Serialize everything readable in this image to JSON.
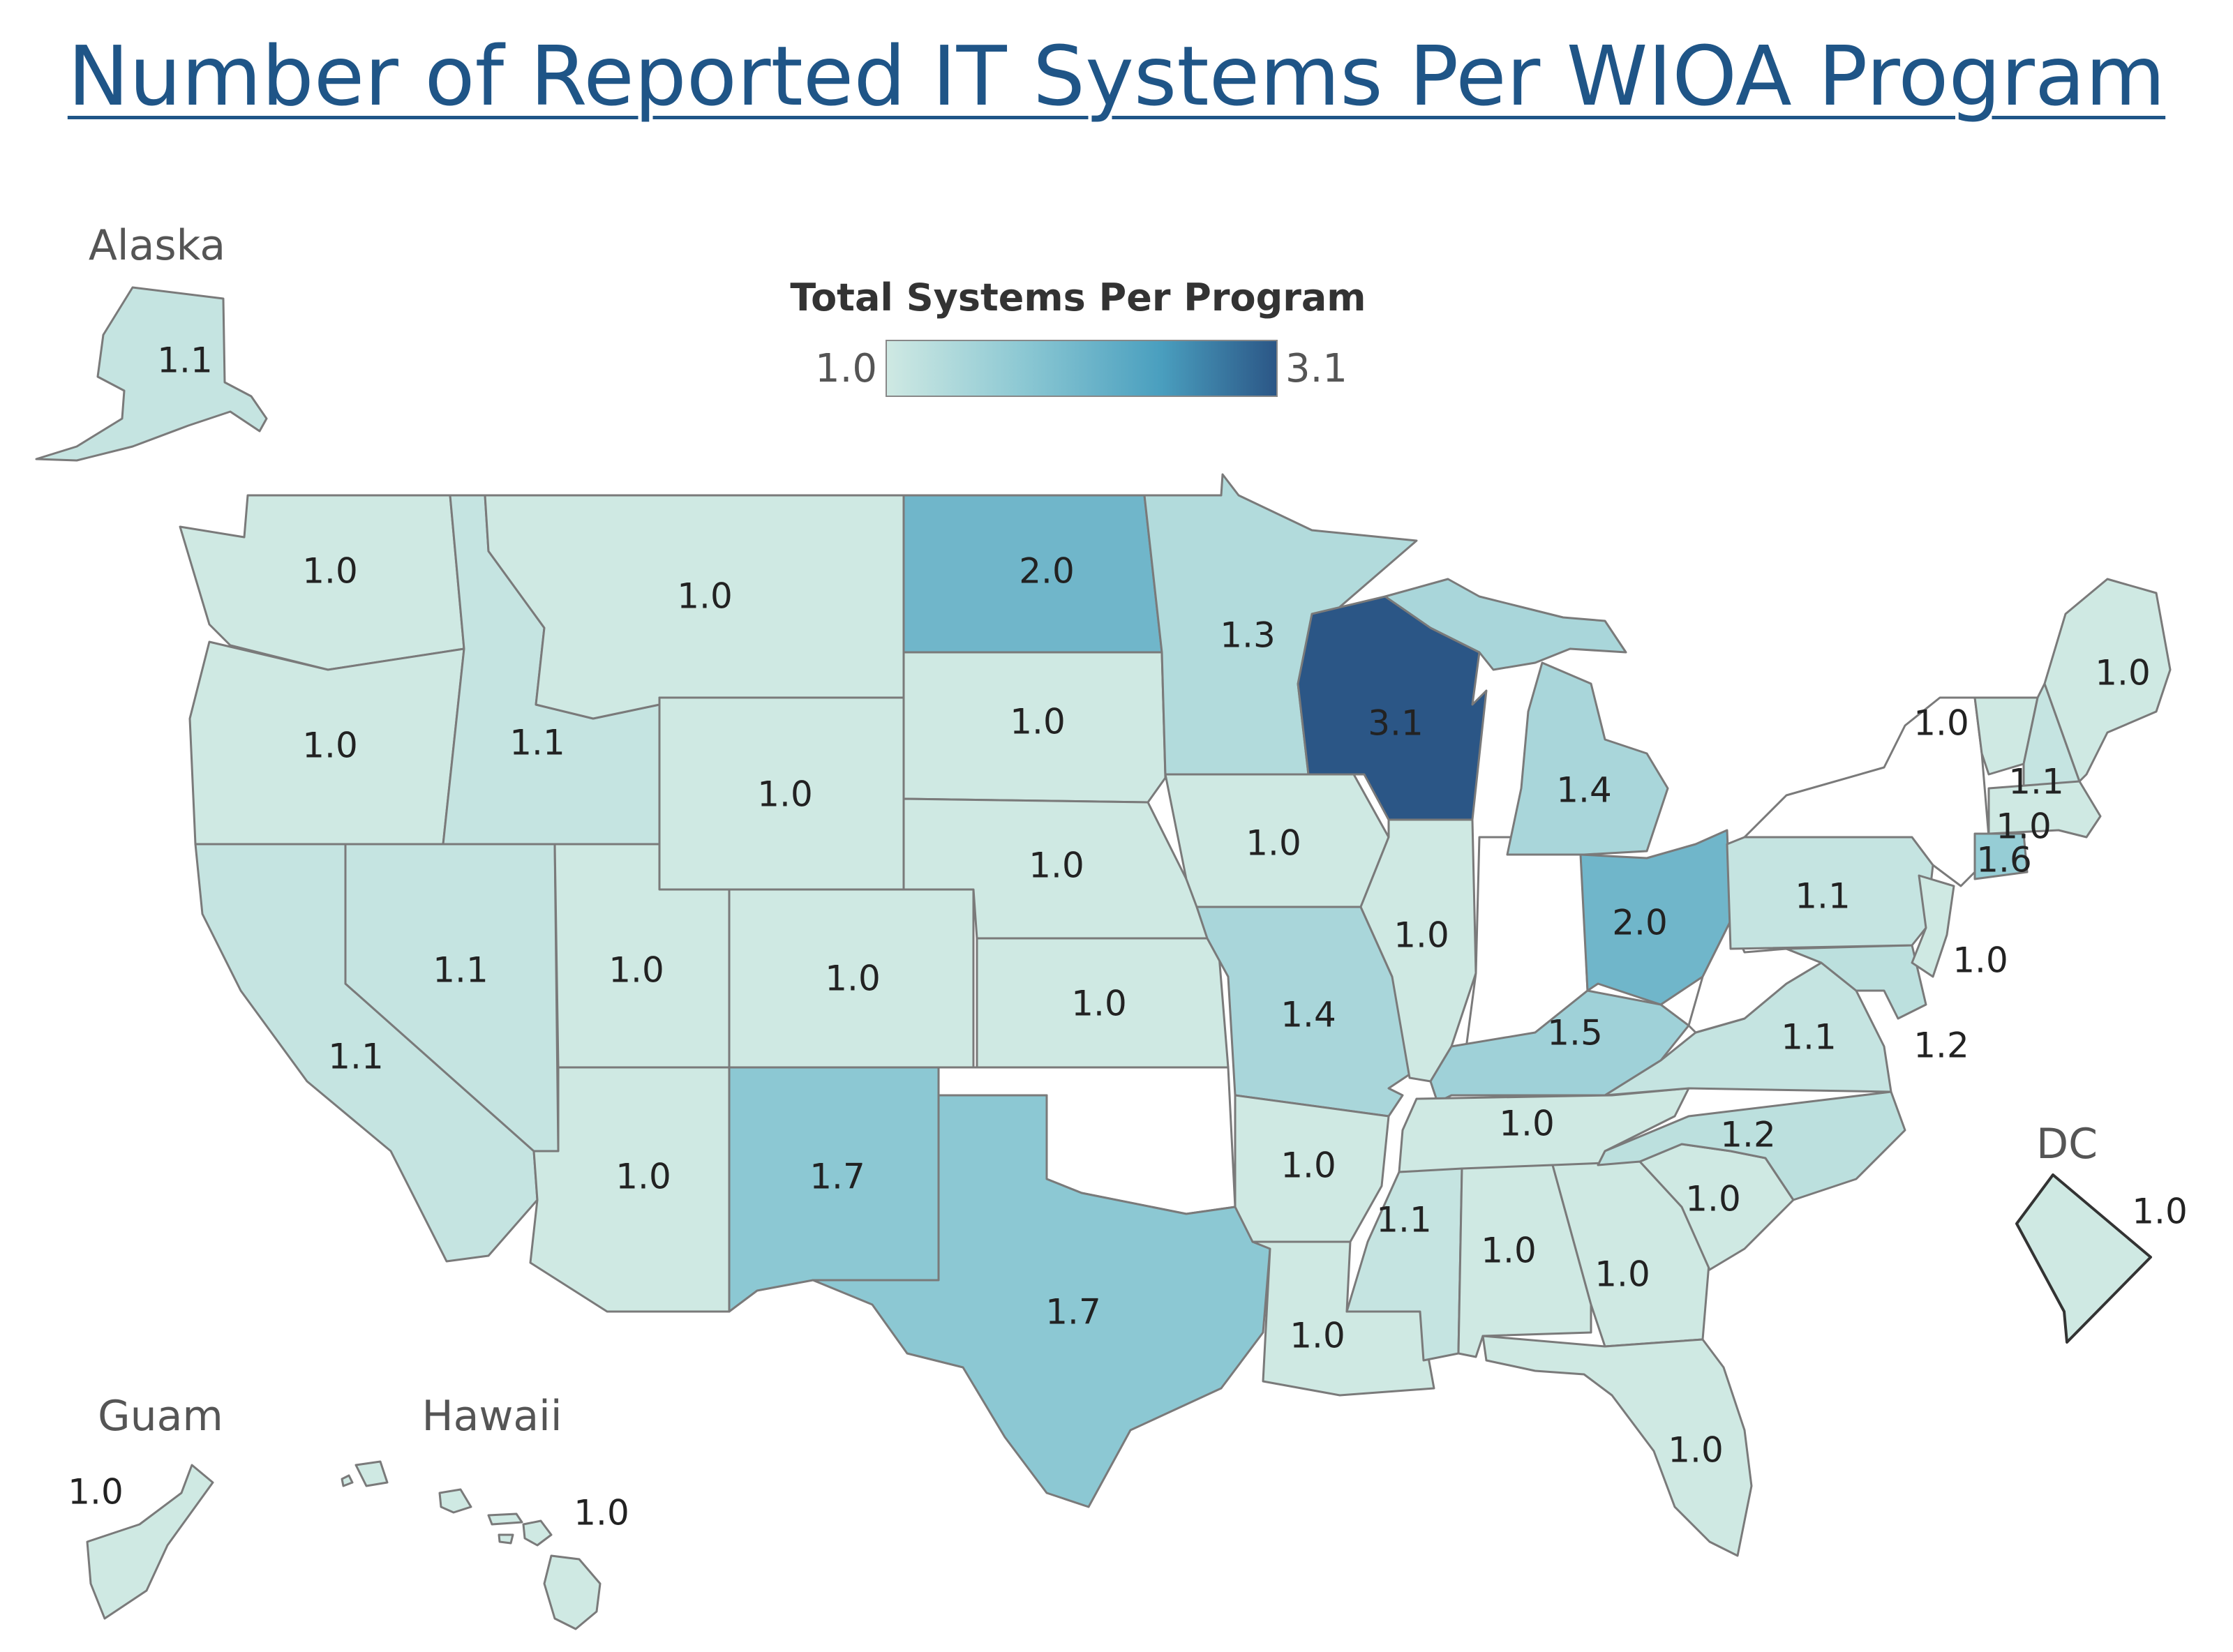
{
  "title": "Number of Reported IT Systems Per WIOA Program",
  "legend": {
    "title": "Total Systems Per Program",
    "min_label": "1.0",
    "max_label": "3.1",
    "min_value": 1.0,
    "max_value": 3.1,
    "color_stops": [
      "#cfe9e3",
      "#8cc8d3",
      "#4a9fbf",
      "#2b5686"
    ]
  },
  "insets": {
    "alaska": {
      "name": "Alaska",
      "value": "1.1"
    },
    "guam": {
      "name": "Guam",
      "value": "1.0"
    },
    "hawaii": {
      "name": "Hawaii",
      "value": "1.0"
    },
    "dc": {
      "name": "DC",
      "value": "1.0"
    }
  },
  "states": {
    "WA": "1.0",
    "OR": "1.0",
    "CA": "1.1",
    "ID": "1.1",
    "NV": "1.1",
    "MT": "1.0",
    "WY": "1.0",
    "UT": "1.0",
    "AZ": "1.0",
    "CO": "1.0",
    "NM": "1.7",
    "ND": "2.0",
    "SD": "1.0",
    "NE": "1.0",
    "KS": "1.0",
    "OK": null,
    "TX": "1.7",
    "MN": "1.3",
    "IA": "1.0",
    "MO": "1.4",
    "AR": "1.0",
    "LA": "1.0",
    "WI": "3.1",
    "IL": "1.0",
    "IN": null,
    "MI": "1.4",
    "OH": "2.0",
    "KY": "1.5",
    "TN": "1.0",
    "MS": "1.1",
    "AL": "1.0",
    "GA": "1.0",
    "FL": "1.0",
    "SC": "1.0",
    "NC": "1.2",
    "VA": "1.1",
    "WV": null,
    "PA": "1.1",
    "NY": null,
    "VT": "1.0",
    "NH": "1.1",
    "ME": "1.0",
    "MA": "1.0",
    "CT": "1.6",
    "NJ": "1.0",
    "MD": "1.2"
  }
}
